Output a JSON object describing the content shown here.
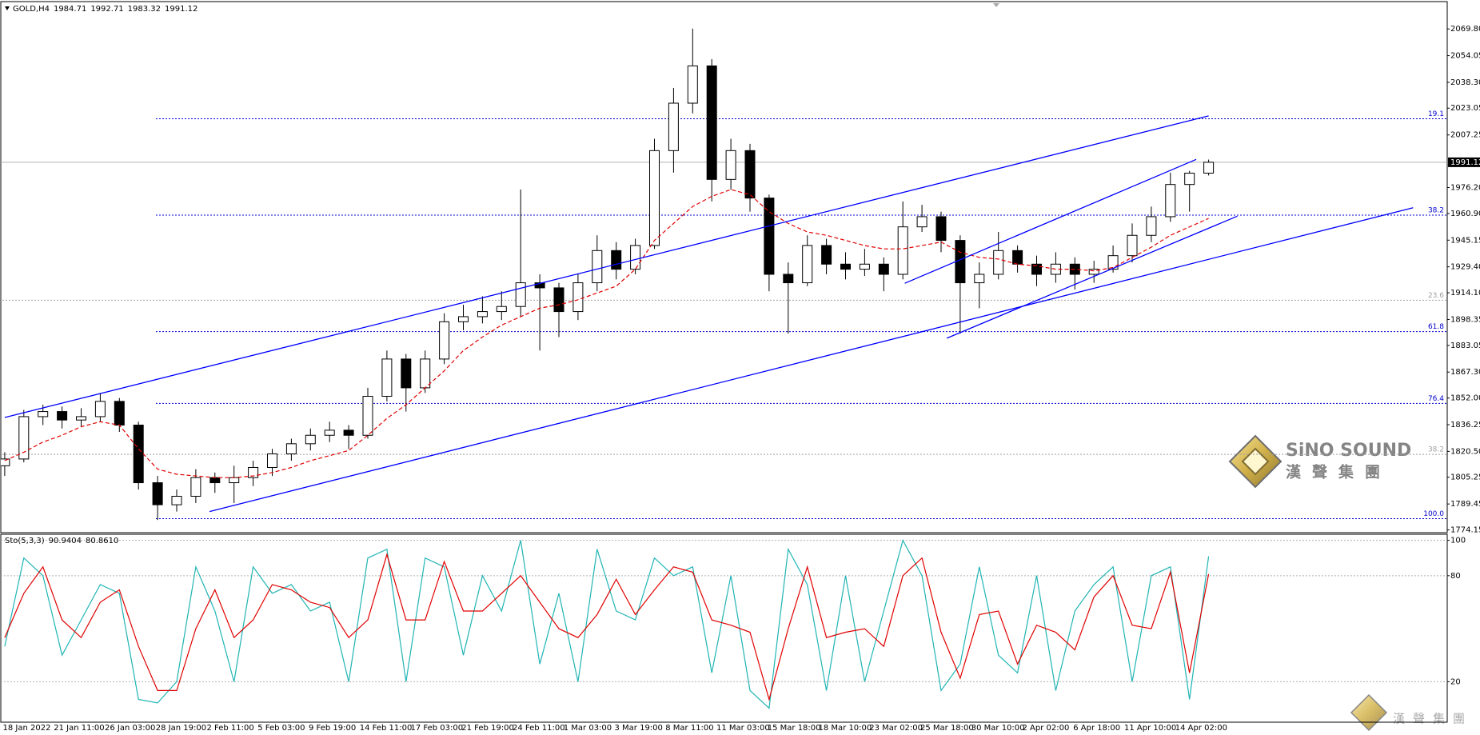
{
  "chart_data": [
    {
      "type": "candlestick",
      "symbol": "GOLD,H4",
      "categories": [
        "18 Jan 2022",
        "21 Jan 11:00",
        "26 Jan 03:00",
        "28 Jan 19:00",
        "2 Feb 11:00",
        "5 Feb 03:00",
        "9 Feb 19:00",
        "14 Feb 11:00",
        "17 Feb 03:00",
        "21 Feb 19:00",
        "24 Feb 11:00",
        "1 Mar 03:00",
        "3 Mar 19:00",
        "8 Mar 11:00",
        "11 Mar 03:00",
        "15 Mar 18:00",
        "18 Mar 10:00",
        "23 Mar 02:00",
        "25 Mar 18:00",
        "30 Mar 10:00",
        "2 Apr 02:00",
        "6 Apr 18:00",
        "11 Apr 10:00",
        "14 Apr 02:00"
      ],
      "ohlc": [
        [
          1812,
          1820,
          1806,
          1816
        ],
        [
          1816,
          1845,
          1814,
          1841
        ],
        [
          1841,
          1848,
          1836,
          1844
        ],
        [
          1844,
          1847,
          1834,
          1839
        ],
        [
          1839,
          1846,
          1835,
          1841
        ],
        [
          1841,
          1855,
          1838,
          1850
        ],
        [
          1850,
          1852,
          1832,
          1836
        ],
        [
          1836,
          1838,
          1798,
          1802
        ],
        [
          1802,
          1806,
          1780,
          1789
        ],
        [
          1789,
          1798,
          1785,
          1794
        ],
        [
          1794,
          1810,
          1790,
          1805
        ],
        [
          1805,
          1808,
          1796,
          1802
        ],
        [
          1802,
          1812,
          1790,
          1805
        ],
        [
          1805,
          1815,
          1800,
          1811
        ],
        [
          1811,
          1822,
          1806,
          1819
        ],
        [
          1819,
          1828,
          1815,
          1825
        ],
        [
          1825,
          1834,
          1821,
          1830
        ],
        [
          1830,
          1838,
          1826,
          1833
        ],
        [
          1833,
          1836,
          1822,
          1830
        ],
        [
          1830,
          1858,
          1828,
          1853
        ],
        [
          1853,
          1880,
          1850,
          1875
        ],
        [
          1875,
          1878,
          1844,
          1858
        ],
        [
          1858,
          1880,
          1855,
          1875
        ],
        [
          1875,
          1902,
          1872,
          1897
        ],
        [
          1897,
          1907,
          1892,
          1900
        ],
        [
          1900,
          1912,
          1896,
          1903
        ],
        [
          1903,
          1915,
          1898,
          1906
        ],
        [
          1906,
          1975,
          1900,
          1920
        ],
        [
          1920,
          1925,
          1880,
          1917
        ],
        [
          1917,
          1920,
          1888,
          1903
        ],
        [
          1903,
          1925,
          1898,
          1920
        ],
        [
          1920,
          1948,
          1915,
          1939
        ],
        [
          1939,
          1944,
          1922,
          1928
        ],
        [
          1928,
          1946,
          1925,
          1942
        ],
        [
          1942,
          2005,
          1940,
          1998
        ],
        [
          1998,
          2035,
          1985,
          2026
        ],
        [
          2026,
          2070,
          2020,
          2048
        ],
        [
          2048,
          2052,
          1968,
          1981
        ],
        [
          1981,
          2005,
          1975,
          1998
        ],
        [
          1998,
          2002,
          1962,
          1970
        ],
        [
          1970,
          1972,
          1915,
          1925
        ],
        [
          1925,
          1932,
          1890,
          1920
        ],
        [
          1920,
          1948,
          1918,
          1942
        ],
        [
          1942,
          1946,
          1925,
          1931
        ],
        [
          1931,
          1938,
          1922,
          1928
        ],
        [
          1928,
          1940,
          1924,
          1931
        ],
        [
          1931,
          1935,
          1915,
          1925
        ],
        [
          1925,
          1968,
          1922,
          1953
        ],
        [
          1953,
          1966,
          1950,
          1959
        ],
        [
          1959,
          1962,
          1938,
          1945
        ],
        [
          1945,
          1948,
          1890,
          1920
        ],
        [
          1920,
          1932,
          1905,
          1925
        ],
        [
          1925,
          1950,
          1922,
          1939
        ],
        [
          1939,
          1942,
          1926,
          1931
        ],
        [
          1931,
          1936,
          1918,
          1925
        ],
        [
          1925,
          1938,
          1920,
          1931
        ],
        [
          1931,
          1935,
          1916,
          1925
        ],
        [
          1925,
          1933,
          1920,
          1928
        ],
        [
          1928,
          1942,
          1926,
          1936
        ],
        [
          1936,
          1955,
          1932,
          1948
        ],
        [
          1948,
          1965,
          1944,
          1959
        ],
        [
          1959,
          1985,
          1956,
          1978
        ],
        [
          1978,
          1986,
          1962,
          1984.71
        ],
        [
          1984.71,
          1992.71,
          1983.32,
          1991.12
        ]
      ],
      "up_color": "#ffffff",
      "down_color": "#000000",
      "ma": {
        "color": "#e00000",
        "values": [
          1815,
          1820,
          1826,
          1830,
          1835,
          1838,
          1836,
          1822,
          1810,
          1807,
          1806,
          1805,
          1805,
          1806,
          1808,
          1811,
          1815,
          1818,
          1821,
          1830,
          1840,
          1848,
          1858,
          1868,
          1880,
          1888,
          1895,
          1900,
          1905,
          1907,
          1910,
          1914,
          1918,
          1928,
          1945,
          1955,
          1965,
          1971,
          1975,
          1972,
          1962,
          1955,
          1950,
          1948,
          1945,
          1942,
          1940,
          1940,
          1942,
          1944,
          1938,
          1935,
          1934,
          1931,
          1930,
          1928,
          1928,
          1927,
          1929,
          1935,
          1941,
          1948,
          1953,
          1958
        ]
      },
      "trend_color": "#0000ff",
      "trendlines": [
        {
          "x": [
            0,
            63
          ],
          "y": [
            1840.5,
            2018.5
          ]
        },
        {
          "x": [
            10.72,
            73.7
          ],
          "y": [
            1785,
            1964.3
          ]
        },
        {
          "x": [
            47.1,
            62.35
          ],
          "y": [
            1919.7,
            1992.8
          ]
        },
        {
          "x": [
            49.3,
            64.5
          ],
          "y": [
            1887.3,
            1959.3
          ]
        }
      ],
      "fib_levels": [
        {
          "value": 2016.8,
          "label": "19.1",
          "color": "#0000cc"
        },
        {
          "value": 1959.9,
          "label": "38.2",
          "color": "#0000cc"
        },
        {
          "value": 1909.7,
          "label": "23.6",
          "color": "#a0a0a0"
        },
        {
          "value": 1891.2,
          "label": "61.8",
          "color": "#0000cc"
        },
        {
          "value": 1848.8,
          "label": "76.4",
          "color": "#0000cc"
        },
        {
          "value": 1818.7,
          "label": "38.2",
          "color": "#a0a0a0"
        },
        {
          "value": 1780.8,
          "label": "100.0",
          "color": "#0000cc"
        }
      ],
      "ylim": [
        1773,
        2085
      ],
      "yticks": [
        {
          "value": 2069.8,
          "label": "2069.80"
        },
        {
          "value": 2054.05,
          "label": "2054.05"
        },
        {
          "value": 2038.3,
          "label": "2038.30"
        },
        {
          "value": 2023.05,
          "label": "2023.05"
        },
        {
          "value": 2007.25,
          "label": "2007.25"
        },
        {
          "value": 1976.2,
          "label": "1976.20"
        },
        {
          "value": 1960.9,
          "label": "1960.90"
        },
        {
          "value": 1945.15,
          "label": "1945.15"
        },
        {
          "value": 1929.4,
          "label": "1929.40"
        },
        {
          "value": 1914.1,
          "label": "1914.10"
        },
        {
          "value": 1898.35,
          "label": "1898.35"
        },
        {
          "value": 1883.05,
          "label": "1883.05"
        },
        {
          "value": 1867.3,
          "label": "1867.30"
        },
        {
          "value": 1852,
          "label": "1852.00"
        },
        {
          "value": 1836.25,
          "label": "1836.25"
        },
        {
          "value": 1820.5,
          "label": "1820.50"
        },
        {
          "value": 1805.25,
          "label": "1805.25"
        },
        {
          "value": 1789.45,
          "label": "1789.45"
        },
        {
          "value": 1774.15,
          "label": "1774.15"
        }
      ]
    },
    {
      "type": "stochastic",
      "title": "Sto(5,3,3)",
      "header_values": [
        "90.9404",
        "80.8610"
      ],
      "series": [
        {
          "color": "#20b4b4",
          "values": [
            40,
            90,
            80,
            35,
            55,
            75,
            70,
            10,
            8,
            20,
            85,
            60,
            20,
            85,
            70,
            75,
            60,
            65,
            20,
            90,
            95,
            20,
            90,
            85,
            35,
            80,
            60,
            100,
            30,
            70,
            20,
            95,
            60,
            55,
            90,
            80,
            85,
            25,
            80,
            15,
            5,
            95,
            75,
            15,
            80,
            20,
            60,
            100,
            80,
            15,
            30,
            85,
            35,
            25,
            80,
            15,
            60,
            75,
            85,
            20,
            80,
            85,
            10,
            90.9404
          ]
        },
        {
          "color": "#e00000",
          "values": [
            45,
            70,
            85,
            55,
            45,
            65,
            72,
            40,
            15,
            15,
            50,
            72,
            45,
            55,
            75,
            72,
            65,
            62,
            45,
            55,
            92,
            55,
            55,
            88,
            60,
            60,
            70,
            80,
            65,
            50,
            45,
            58,
            78,
            58,
            72,
            85,
            82,
            55,
            52,
            48,
            10,
            50,
            85,
            45,
            48,
            50,
            40,
            80,
            90,
            48,
            22,
            58,
            60,
            30,
            52,
            48,
            38,
            68,
            80,
            52,
            50,
            82,
            25,
            80.861
          ]
        }
      ],
      "ylim": [
        -2,
        103
      ],
      "yticks": [
        100,
        80,
        20
      ],
      "grid": true
    }
  ],
  "watermark": {
    "brand": "SiNO SOUND",
    "chinese": "漢聲集團",
    "corner": "漢聲集團"
  }
}
